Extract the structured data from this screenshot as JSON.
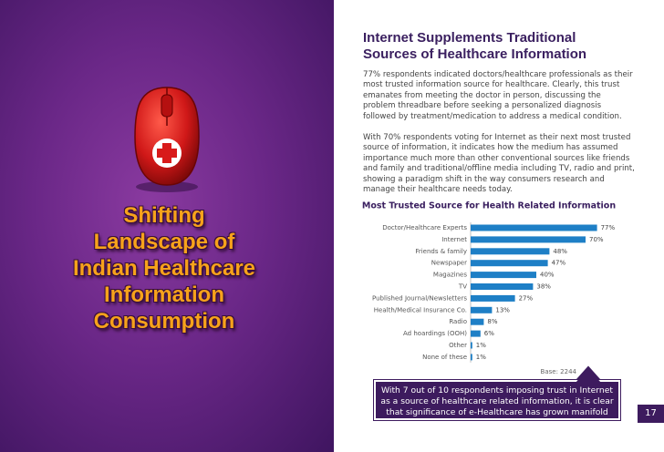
{
  "side_title": "Shifting Landscape of Indian Healthcare Information Consumption",
  "header": {
    "title_lines": [
      "Internet Supplements Traditional",
      "Sources of Healthcare Information"
    ]
  },
  "paragraphs": [
    "77% respondents indicated doctors/healthcare professionals as their most trusted information source for healthcare. Clearly, this trust emanates from meeting the doctor in person, discussing the problem threadbare before seeking a personalized diagnosis followed by treatment/medication to address a medical condition.",
    "With 70% respondents voting for Internet as their next most trusted source of information, it indicates how the medium has assumed importance much more than other conventional sources like friends and family and traditional/offline media including TV, radio and print, showing a paradigm shift in the way consumers research and manage their healthcare needs today."
  ],
  "chart_data": {
    "type": "bar",
    "orientation": "horizontal",
    "title": "Most Trusted Source for Health Related Information",
    "categories": [
      "Doctor/Healthcare Experts",
      "Internet",
      "Friends & family",
      "Newspaper",
      "Magazines",
      "TV",
      "Published Journal/Newsletters",
      "Health/Medical Insurance Co.",
      "Radio",
      "Ad hoardings (OOH)",
      "Other",
      "None of these"
    ],
    "values": [
      77,
      70,
      48,
      47,
      40,
      38,
      27,
      13,
      8,
      6,
      1,
      1
    ],
    "value_labels": [
      "77%",
      "70%",
      "48%",
      "47%",
      "40%",
      "38%",
      "27%",
      "13%",
      "8%",
      "6%",
      "1%",
      "1%"
    ],
    "color": "#1e7fc6",
    "note": "Base: 2244"
  },
  "callout": "With 7 out of 10 respondents imposing trust in Internet as a source of healthcare related information, it is clear that significance of  e-Healthcare has grown manifold",
  "page_number": "17"
}
